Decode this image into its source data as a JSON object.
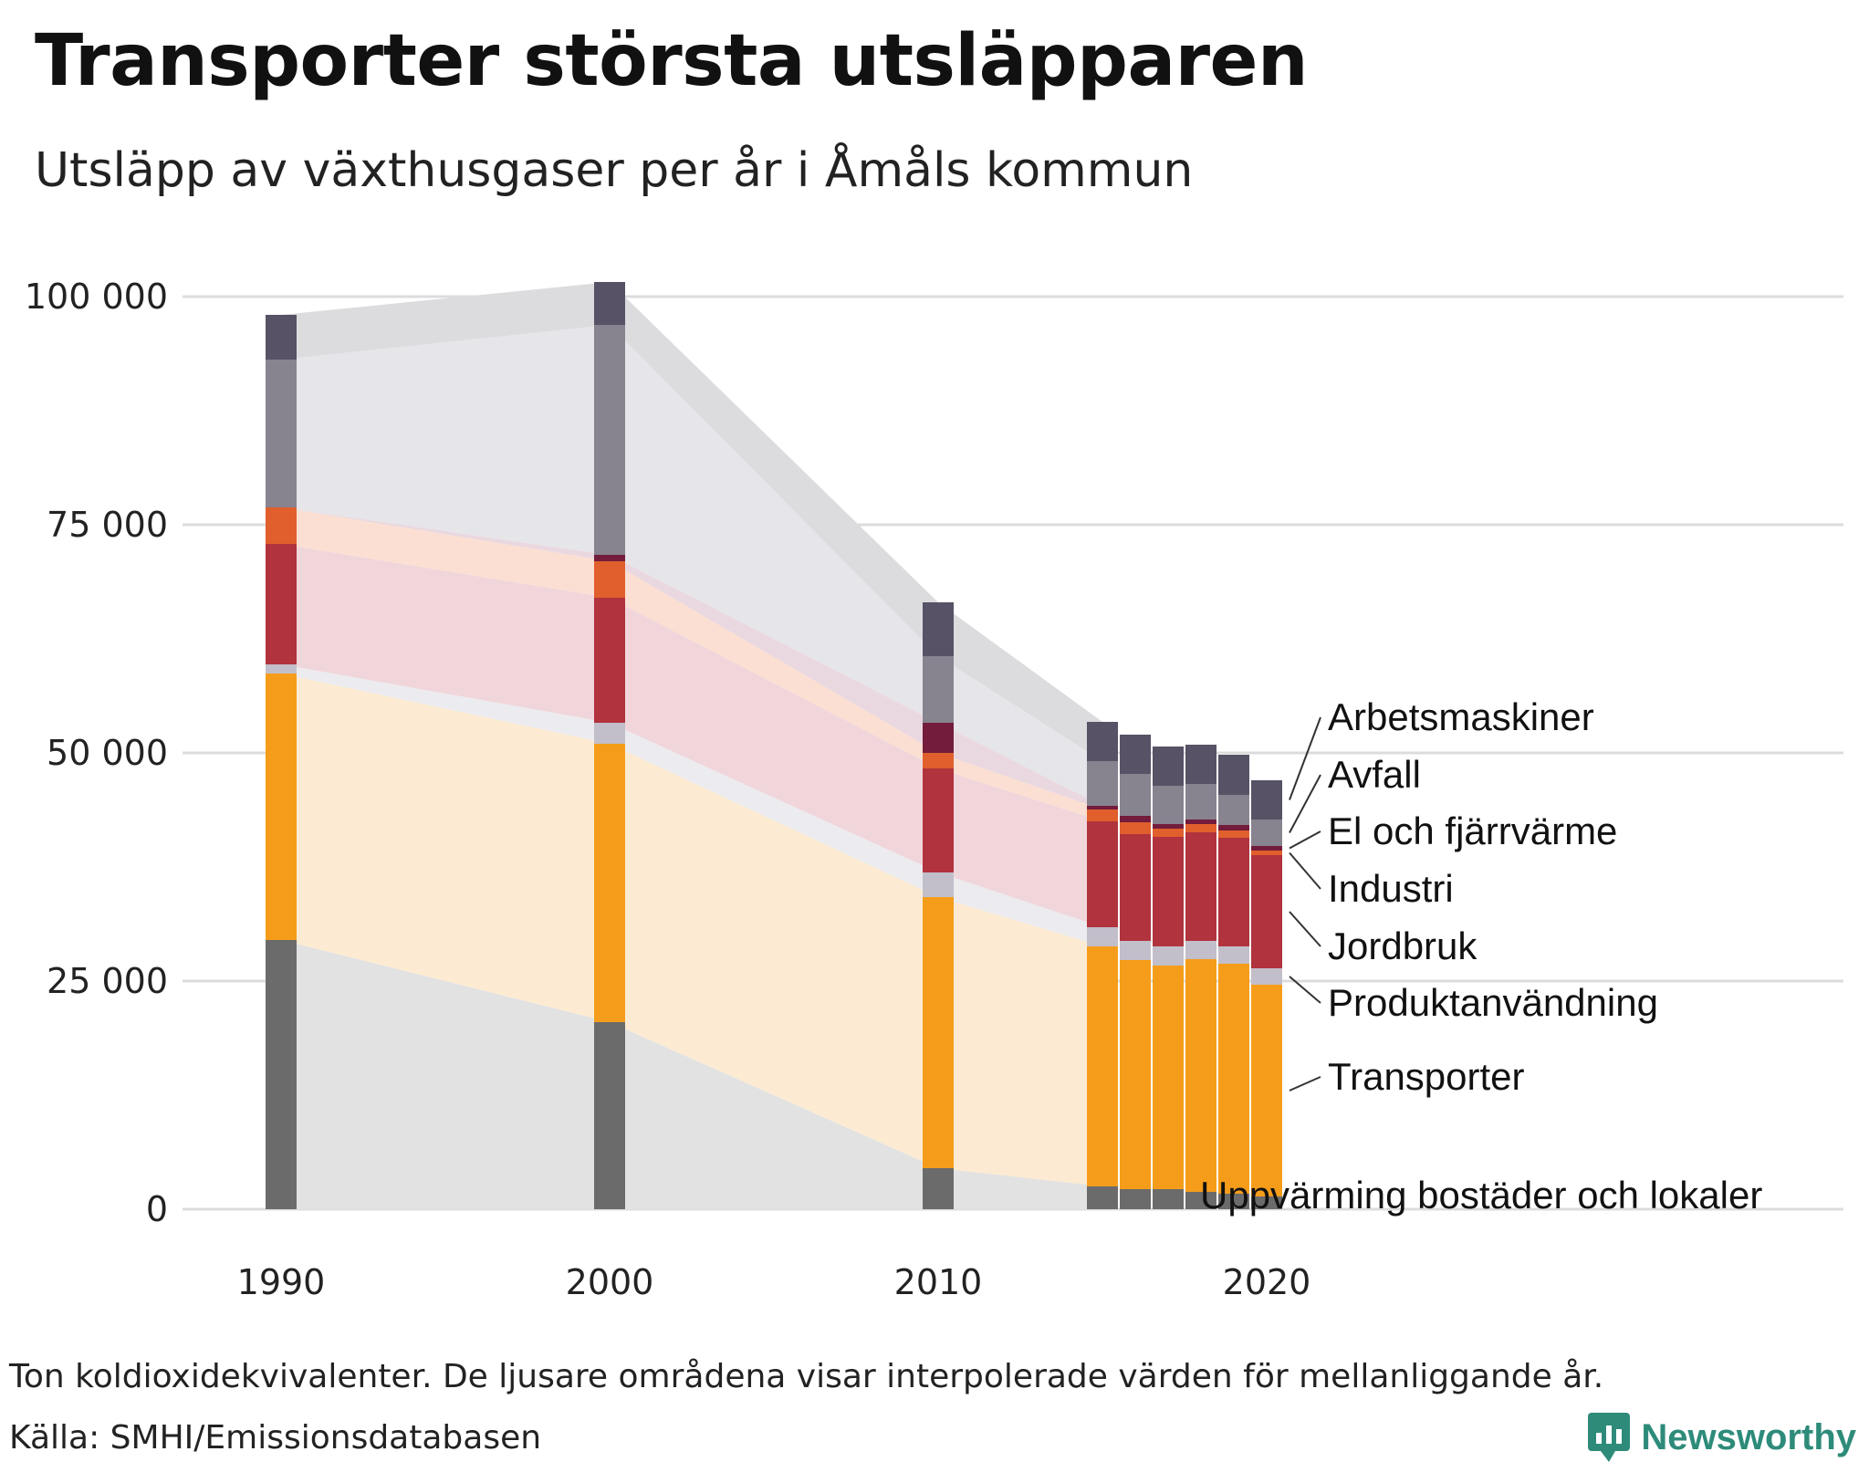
{
  "title": "Transporter största utsläpparen",
  "subtitle": "Utsläpp av växthusgaser per år i Åmåls kommun",
  "footnote": "Ton koldioxidekvivalenter. De ljusare områdena visar interpolerade värden för mellanliggande år.",
  "source": "Källa: SMHI/Emissionsdatabasen",
  "brand": {
    "name": "Newsworthy",
    "icon": "newsworthy-logo-icon",
    "color": "#2e8b7a"
  },
  "chart_data": {
    "type": "bar",
    "stacked": true,
    "title": "Utsläpp av växthusgaser per år i Åmåls kommun",
    "xlabel": "",
    "ylabel": "Ton koldioxidekvivalenter",
    "ylim": [
      0,
      100000
    ],
    "yticks": [
      0,
      25000,
      50000,
      75000,
      100000
    ],
    "ytick_labels": [
      "0",
      "25 000",
      "50 000",
      "75 000",
      "100 000"
    ],
    "xticks": [
      1990,
      2000,
      2010,
      2020
    ],
    "x": [
      1990,
      2000,
      2010,
      2015,
      2016,
      2017,
      2018,
      2019,
      2020
    ],
    "series": [
      {
        "name": "Uppvärming bostäder och lokaler",
        "color": "#6b6b6b",
        "light": "#e2e2e3",
        "values": [
          29500,
          20500,
          4500,
          2500,
          2200,
          2200,
          1900,
          1700,
          1400
        ]
      },
      {
        "name": "Transporter",
        "color": "#f59d1a",
        "light": "#fcebd2",
        "values": [
          29200,
          30500,
          29700,
          26300,
          25100,
          24500,
          25500,
          25200,
          23200
        ]
      },
      {
        "name": "Produktanvändning",
        "color": "#c2bfcb",
        "light": "#ecebef",
        "values": [
          1000,
          2300,
          2700,
          2100,
          2100,
          2100,
          2000,
          1900,
          1800
        ]
      },
      {
        "name": "Jordbruk",
        "color": "#b0333d",
        "light": "#f0d6da",
        "values": [
          13200,
          13700,
          11400,
          11600,
          11700,
          12000,
          11900,
          11900,
          12400
        ]
      },
      {
        "name": "Industri",
        "color": "#e05f2c",
        "light": "#fbdfd2",
        "values": [
          4000,
          4000,
          1700,
          1300,
          1300,
          900,
          900,
          800,
          500
        ]
      },
      {
        "name": "El och fjärrvärme",
        "color": "#731c3c",
        "light": "#ead8e0",
        "values": [
          0,
          700,
          3300,
          400,
          700,
          500,
          500,
          600,
          500
        ]
      },
      {
        "name": "Avfall",
        "color": "#87838f",
        "light": "#e6e5e9",
        "values": [
          16200,
          25200,
          7300,
          4900,
          4600,
          4200,
          3900,
          3300,
          2900
        ]
      },
      {
        "name": "Arbetsmaskiner",
        "color": "#575265",
        "light": "#dcdbde",
        "values": [
          4900,
          4700,
          5900,
          4300,
          4300,
          4300,
          4300,
          4400,
          4300
        ]
      }
    ],
    "legend": "right, direct labels next to last bar",
    "legend_order_top_to_bottom": [
      "Arbetsmaskiner",
      "Avfall",
      "El och fjärrvärme",
      "Industri",
      "Jordbruk",
      "Produktanvändning",
      "Transporter",
      "Uppvärming bostäder och lokaler"
    ]
  }
}
